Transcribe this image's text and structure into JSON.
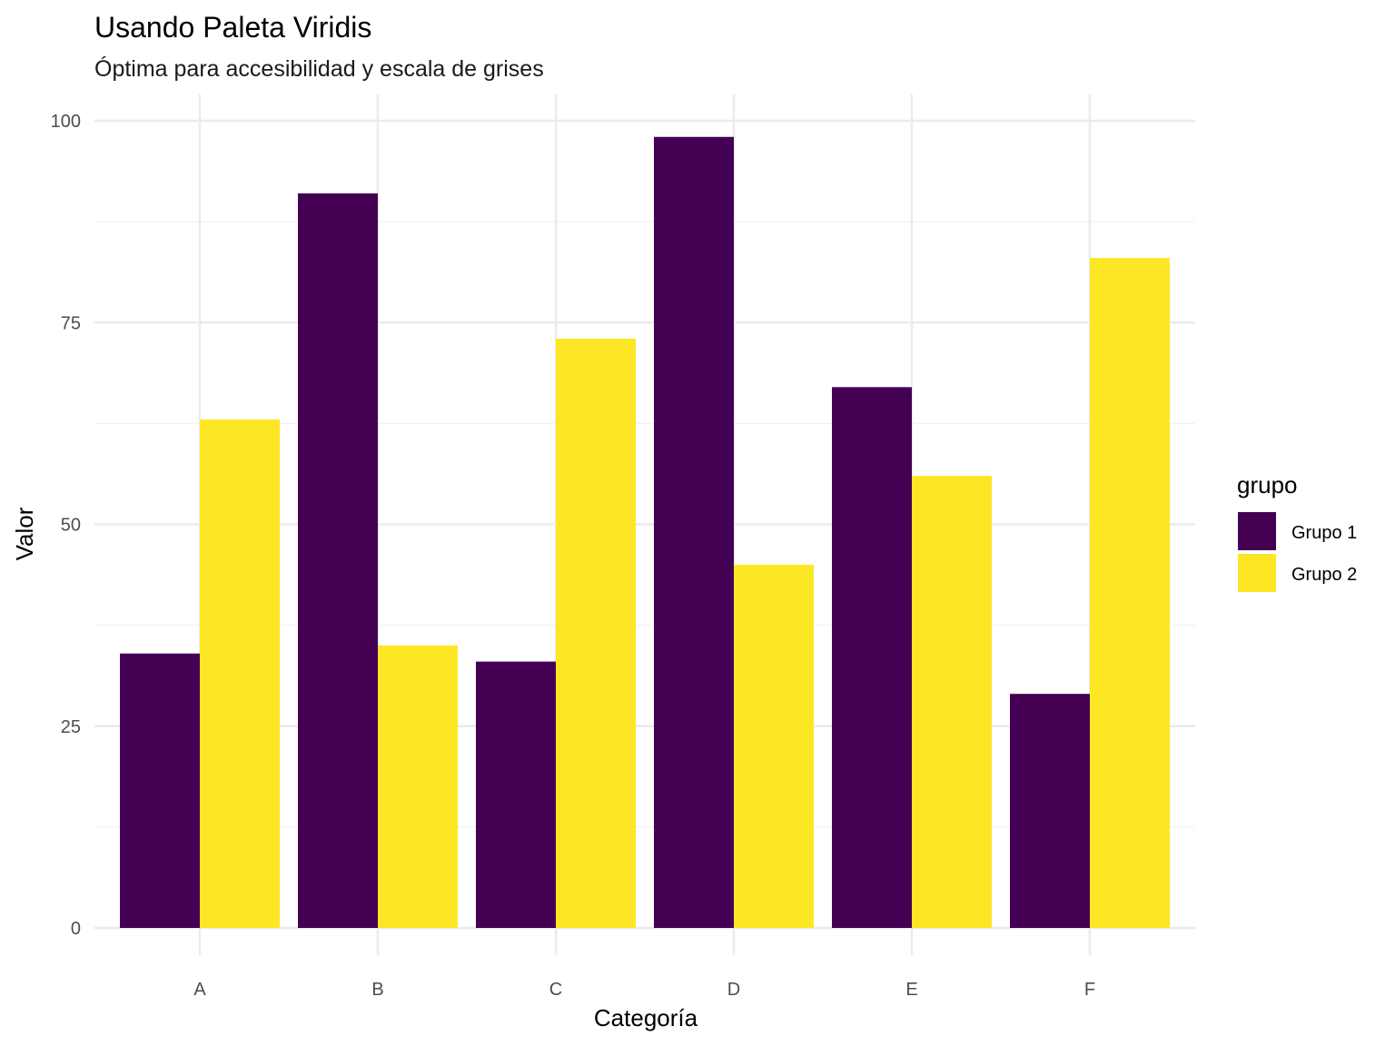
{
  "chart_data": {
    "type": "bar",
    "title": "Usando Paleta Viridis",
    "subtitle": "Óptima para accesibilidad y escala de grises",
    "xlabel": "Categoría",
    "ylabel": "Valor",
    "categories": [
      "A",
      "B",
      "C",
      "D",
      "E",
      "F"
    ],
    "series": [
      {
        "name": "Grupo 1",
        "color": "#440154",
        "values": [
          34,
          91,
          33,
          98,
          67,
          29
        ]
      },
      {
        "name": "Grupo 2",
        "color": "#FDE725",
        "values": [
          63,
          35,
          73,
          45,
          56,
          83
        ]
      }
    ],
    "ylim": [
      0,
      100
    ],
    "yticks": [
      0,
      25,
      50,
      75,
      100
    ],
    "ytick_labels": [
      "0",
      "25",
      "50",
      "75",
      "100"
    ],
    "grid": true,
    "legend": {
      "title": "grupo",
      "position": "right"
    }
  }
}
